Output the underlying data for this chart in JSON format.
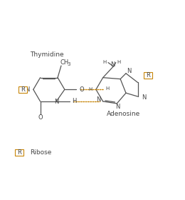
{
  "bg_color": "#ffffff",
  "line_color": "#555555",
  "hbond_color": "#c8860a",
  "ribose_box_color": "#c8860a",
  "text_color": "#444444",
  "title_thymine": "Thymidine",
  "title_adenosine": "Adenosine",
  "legend_text": "Ribose",
  "figsize": [
    2.6,
    2.8
  ],
  "dpi": 100
}
